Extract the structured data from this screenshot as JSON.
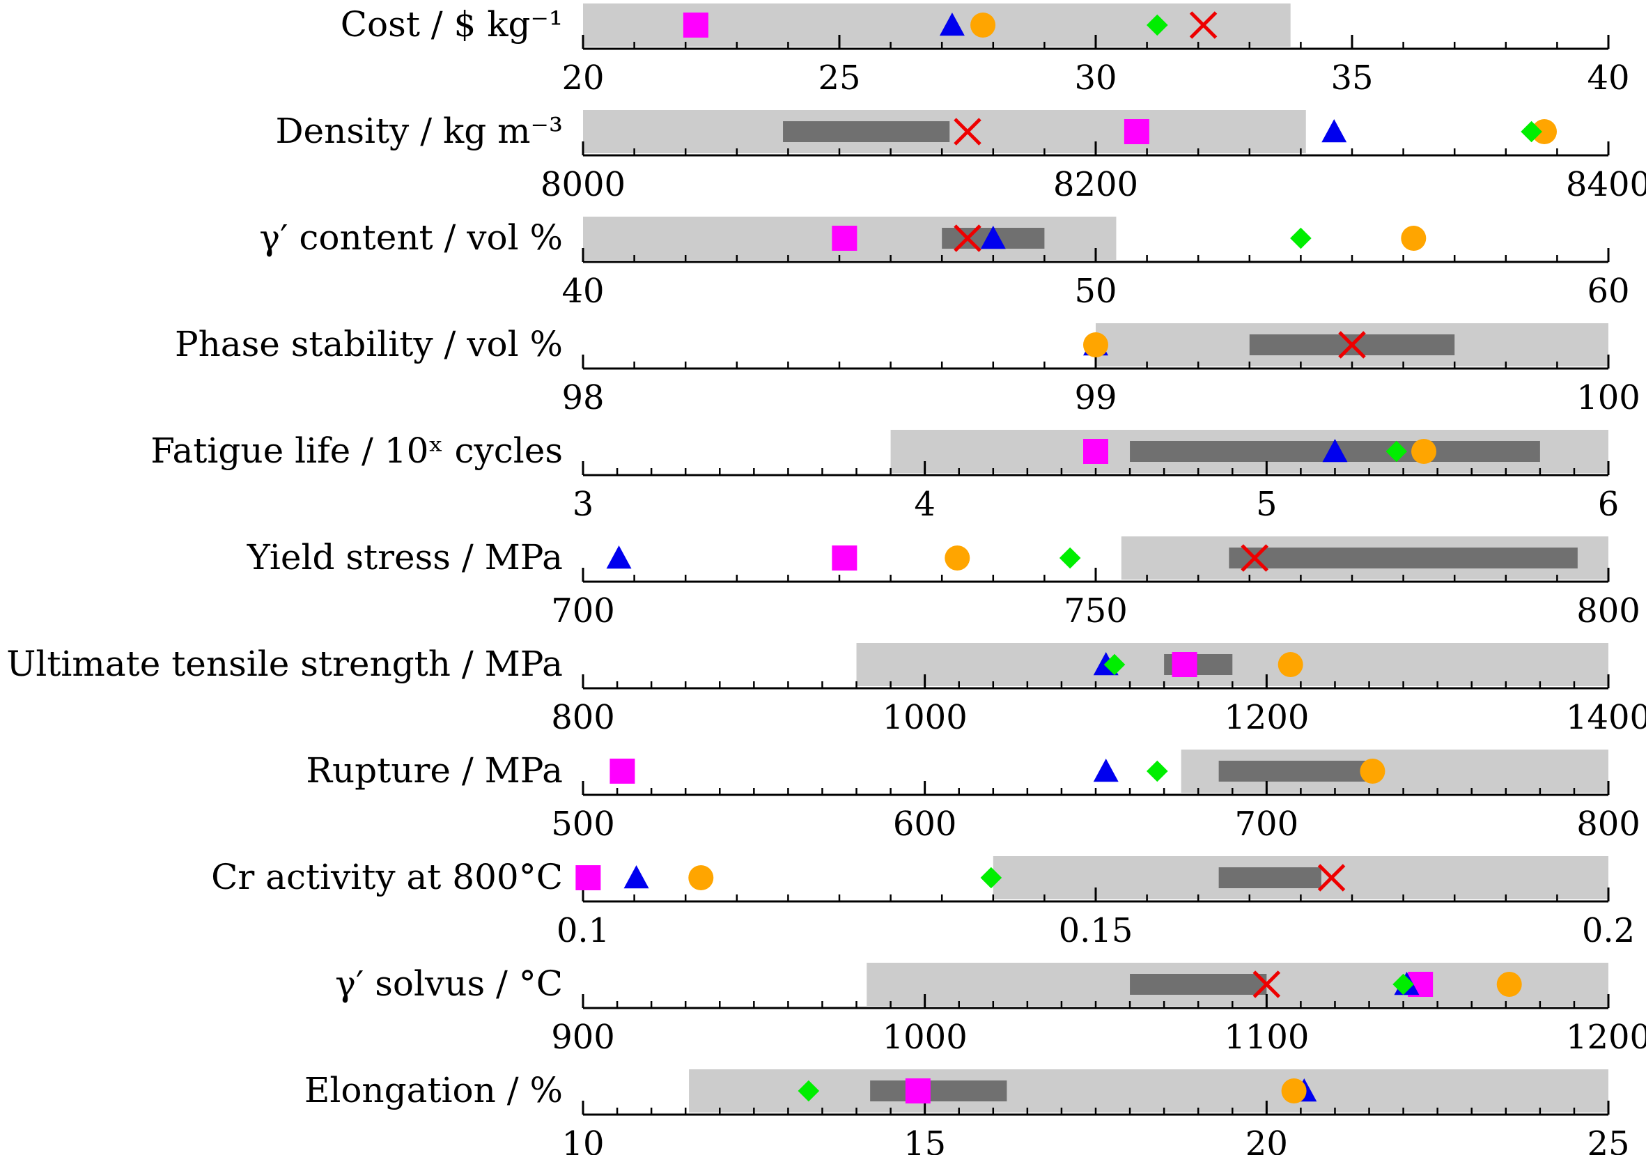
{
  "chart_data": {
    "type": "range-strip",
    "title": "",
    "marker_colors": {
      "square": "#ff00ff",
      "triangle": "#0000ee",
      "circle": "#ffa500",
      "diamond": "#00ee00",
      "cross": "#ee0000"
    },
    "region_colors": {
      "feasible": "#cccccc",
      "optimal": "#707070"
    },
    "panels": [
      {
        "label": "Cost / $ kg⁻¹",
        "xlim": [
          20,
          40
        ],
        "ticks": [
          20,
          25,
          30,
          35,
          40
        ],
        "tick_labels": [
          "20",
          "25",
          "30",
          "35",
          "40"
        ],
        "minor_step": 1,
        "feasible": [
          20,
          33.8
        ],
        "optimal": null,
        "points": {
          "square": 22.2,
          "triangle": 27.2,
          "circle": 27.8,
          "diamond": 31.2,
          "cross": 32.1
        }
      },
      {
        "label": "Density / kg m⁻³",
        "xlim": [
          8000,
          8400
        ],
        "ticks": [
          8000,
          8200,
          8400
        ],
        "tick_labels": [
          "8000",
          "8200",
          "8400"
        ],
        "minor_step": 20,
        "feasible": [
          8000,
          8282
        ],
        "optimal": [
          8078,
          8143
        ],
        "points": {
          "cross": 8150,
          "square": 8216,
          "triangle": 8293,
          "diamond": 8370,
          "circle": 8375
        }
      },
      {
        "label": "γ′ content / vol %",
        "xlim": [
          40,
          60
        ],
        "ticks": [
          40,
          50,
          60
        ],
        "tick_labels": [
          "40",
          "50",
          "60"
        ],
        "minor_step": 1,
        "feasible": [
          40,
          50.4
        ],
        "optimal": [
          47,
          49
        ],
        "points": {
          "square": 45.1,
          "cross": 47.5,
          "triangle": 48,
          "diamond": 54,
          "circle": 56.2
        }
      },
      {
        "label": "Phase stability / vol %",
        "xlim": [
          98,
          100
        ],
        "ticks": [
          98,
          99,
          100
        ],
        "tick_labels": [
          "98",
          "99",
          "100"
        ],
        "minor_step": 0.1,
        "feasible": [
          99,
          100
        ],
        "optimal": [
          99.3,
          99.7
        ],
        "points": {
          "circle": 99,
          "triangle": 99,
          "cross": 99.5
        }
      },
      {
        "label": "Fatigue life / 10ˣ cycles",
        "xlim": [
          3,
          6
        ],
        "ticks": [
          3,
          4,
          5,
          6
        ],
        "tick_labels": [
          "3",
          "4",
          "5",
          "6"
        ],
        "minor_step": 0.1,
        "feasible": [
          3.9,
          6
        ],
        "optimal": [
          4.6,
          5.8
        ],
        "points": {
          "square": 4.5,
          "triangle": 5.2,
          "diamond": 5.38,
          "circle": 5.46
        }
      },
      {
        "label": "Yield stress / MPa",
        "xlim": [
          700,
          800
        ],
        "ticks": [
          700,
          750,
          800
        ],
        "tick_labels": [
          "700",
          "750",
          "800"
        ],
        "minor_step": 5,
        "feasible": [
          752.5,
          800
        ],
        "optimal": [
          763,
          797
        ],
        "points": {
          "triangle": 703.5,
          "square": 725.5,
          "circle": 736.5,
          "diamond": 747.5,
          "cross": 765.5
        }
      },
      {
        "label": "Ultimate tensile strength / MPa",
        "xlim": [
          800,
          1400
        ],
        "ticks": [
          800,
          1000,
          1200,
          1400
        ],
        "tick_labels": [
          "800",
          "1000",
          "1200",
          "1400"
        ],
        "minor_step": 20,
        "feasible": [
          960,
          1400
        ],
        "optimal": [
          1140,
          1180
        ],
        "points": {
          "triangle": 1106,
          "diamond": 1111,
          "square": 1152,
          "circle": 1214
        }
      },
      {
        "label": "Rupture / MPa",
        "xlim": [
          500,
          800
        ],
        "ticks": [
          500,
          600,
          700,
          800
        ],
        "tick_labels": [
          "500",
          "600",
          "700",
          "800"
        ],
        "minor_step": 10,
        "feasible": [
          675,
          800
        ],
        "optimal": [
          686,
          730
        ],
        "points": {
          "square": 511.5,
          "triangle": 653,
          "diamond": 668,
          "circle": 731
        }
      },
      {
        "label": "Cr activity at 800°C",
        "xlim": [
          0.1,
          0.2
        ],
        "ticks": [
          0.1,
          0.15,
          0.2
        ],
        "tick_labels": [
          "0.1",
          "0.15",
          "0.2"
        ],
        "minor_step": 0.005,
        "feasible": [
          0.14,
          0.2
        ],
        "optimal": [
          0.162,
          0.172
        ],
        "points": {
          "square": 0.1005,
          "triangle": 0.1052,
          "circle": 0.1115,
          "diamond": 0.1398,
          "cross": 0.173
        }
      },
      {
        "label": "γ′ solvus / °C",
        "xlim": [
          900,
          1200
        ],
        "ticks": [
          900,
          1000,
          1100,
          1200
        ],
        "tick_labels": [
          "900",
          "1000",
          "1100",
          "1200"
        ],
        "minor_step": 10,
        "feasible": [
          983,
          1200
        ],
        "optimal": [
          1060,
          1100
        ],
        "points": {
          "cross": 1100,
          "diamond": 1140,
          "triangle": 1141,
          "square": 1145,
          "circle": 1171
        }
      },
      {
        "label": "Elongation / %",
        "xlim": [
          10,
          25
        ],
        "ticks": [
          10,
          15,
          20,
          25
        ],
        "tick_labels": [
          "10",
          "15",
          "20",
          "25"
        ],
        "minor_step": 0.5,
        "feasible": [
          11.55,
          25
        ],
        "optimal": [
          14.2,
          16.2
        ],
        "points": {
          "diamond": 13.3,
          "square": 14.9,
          "circle": 20.4,
          "triangle": 20.55
        }
      }
    ]
  }
}
